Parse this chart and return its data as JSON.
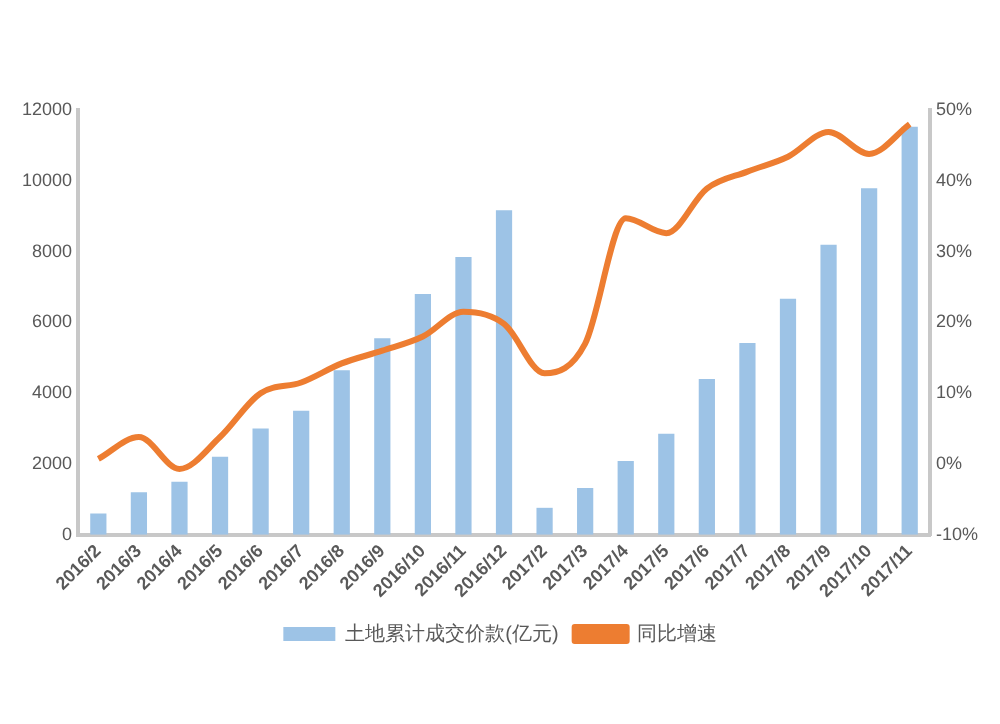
{
  "chart_data": {
    "type": "bar",
    "categories": [
      "2016/2",
      "2016/3",
      "2016/4",
      "2016/5",
      "2016/6",
      "2016/7",
      "2016/8",
      "2016/9",
      "2016/10",
      "2016/11",
      "2016/12",
      "2017/2",
      "2017/3",
      "2017/4",
      "2017/5",
      "2017/6",
      "2017/7",
      "2017/8",
      "2017/9",
      "2017/10",
      "2017/11"
    ],
    "series": [
      {
        "name": "土地累计成交价款(亿元)",
        "color": "#9dc3e6",
        "values": [
          600,
          1200,
          1500,
          2200,
          3000,
          3500,
          4650,
          5550,
          6800,
          7850,
          9170,
          760,
          1320,
          2080,
          2850,
          4400,
          5420,
          6670,
          8190,
          9790,
          11530
        ]
      },
      {
        "name": "同比增速",
        "type": "line",
        "axis": "y2",
        "color": "#ed7d31",
        "marker": "none",
        "values": [
          0.7,
          3.8,
          -0.7,
          3.8,
          10,
          11.5,
          14.2,
          16,
          18,
          21.5,
          19.8,
          12.8,
          17,
          34.7,
          32.6,
          38.9,
          41.3,
          43.4,
          46.9,
          43.8,
          48
        ]
      }
    ],
    "ylim": [
      0,
      12000
    ],
    "yticks": [
      0,
      2000,
      4000,
      6000,
      8000,
      10000,
      12000
    ],
    "y2lim": [
      -10,
      50
    ],
    "y2ticks": [
      {
        "value": -10,
        "label": "-10%"
      },
      {
        "value": 0,
        "label": "0%"
      },
      {
        "value": 10,
        "label": "10%"
      },
      {
        "value": 20,
        "label": "20%"
      },
      {
        "value": 30,
        "label": "30%"
      },
      {
        "value": 40,
        "label": "40%"
      },
      {
        "value": 50,
        "label": "50%"
      }
    ],
    "grid": false,
    "legend": "bottom"
  }
}
